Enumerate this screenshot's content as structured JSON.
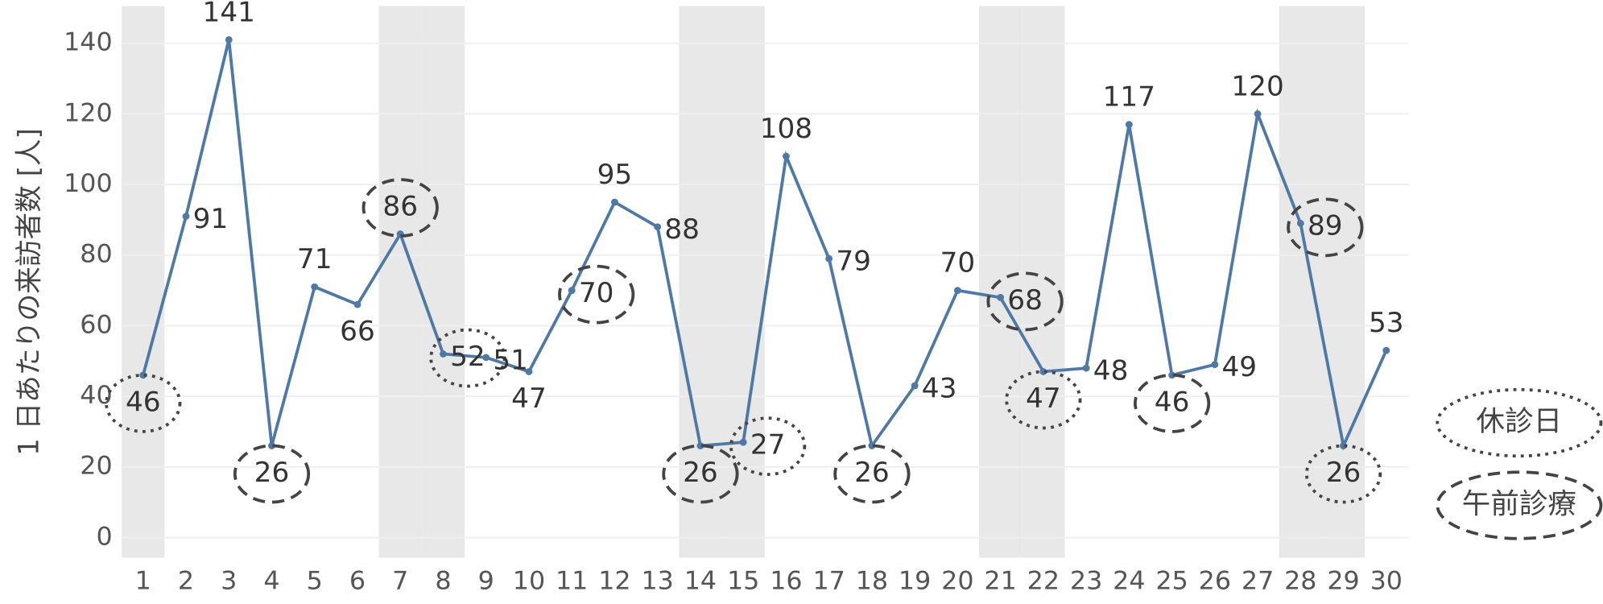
{
  "chart_data": {
    "type": "line",
    "y_label": "1 日あたりの来訪者数 [人]",
    "categories": [
      "1",
      "2",
      "3",
      "4",
      "5",
      "6",
      "7",
      "8",
      "9",
      "10",
      "11",
      "12",
      "13",
      "14",
      "15",
      "16",
      "17",
      "18",
      "19",
      "20",
      "21",
      "22",
      "23",
      "24",
      "25",
      "26",
      "27",
      "28",
      "29",
      "30"
    ],
    "series": [
      {
        "color": "#4e79a7",
        "values": [
          46,
          91,
          141,
          26,
          71,
          66,
          86,
          52,
          51,
          47,
          70,
          95,
          88,
          26,
          27,
          108,
          79,
          26,
          43,
          70,
          68,
          47,
          48,
          117,
          46,
          49,
          120,
          89,
          26,
          53
        ]
      }
    ],
    "ylim": [
      0,
      150
    ],
    "yticks": [
      0,
      20,
      40,
      60,
      80,
      100,
      120,
      140
    ],
    "grid": true,
    "shaded": [
      "1",
      "7",
      "8",
      "14",
      "15",
      "21",
      "22",
      "28",
      "29"
    ],
    "markers": [
      {
        "name": "休診日",
        "style": "dotted",
        "days": [
          "1",
          "8",
          "15",
          "22",
          "29"
        ]
      },
      {
        "name": "午前診療",
        "style": "dashed",
        "days": [
          "4",
          "7",
          "11",
          "14",
          "18",
          "21",
          "25",
          "28"
        ]
      }
    ]
  }
}
